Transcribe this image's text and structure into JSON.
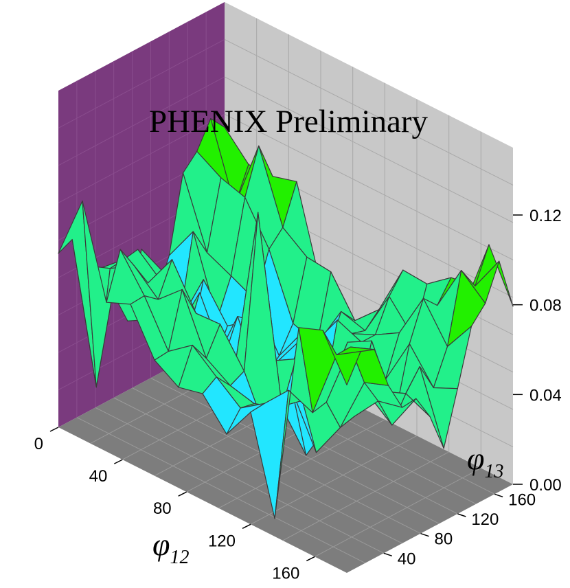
{
  "chart_data": {
    "type": "surface3d",
    "title": "PHENIX Preliminary",
    "x_axis": {
      "label": "φ",
      "subscript": "12",
      "ticks": [
        "0",
        "40",
        "80",
        "120",
        "160"
      ],
      "range": [
        0,
        180
      ]
    },
    "y_axis": {
      "label": "φ",
      "subscript": "13",
      "ticks": [
        "40",
        "80",
        "120",
        "160"
      ],
      "range": [
        0,
        180
      ]
    },
    "z_axis": {
      "label": "",
      "ticks": [
        "0.00",
        "0.04",
        "0.08",
        "0.12"
      ],
      "range": [
        0,
        0.15
      ]
    },
    "grid": true,
    "colors": {
      "left_wall": "#7a3a7e",
      "back_wall": "#c8c8c8",
      "floor": "#7d7d7d",
      "grid_line": "#9a9a9a",
      "mesh_line": "#3a3a3a",
      "band_low": "#2a7fe6",
      "band_mid": "#22e6ff",
      "band_main": "#22f08a",
      "band_high": "#22f000",
      "band_peak": "#f5f000",
      "underside": "#8a8040"
    }
  }
}
